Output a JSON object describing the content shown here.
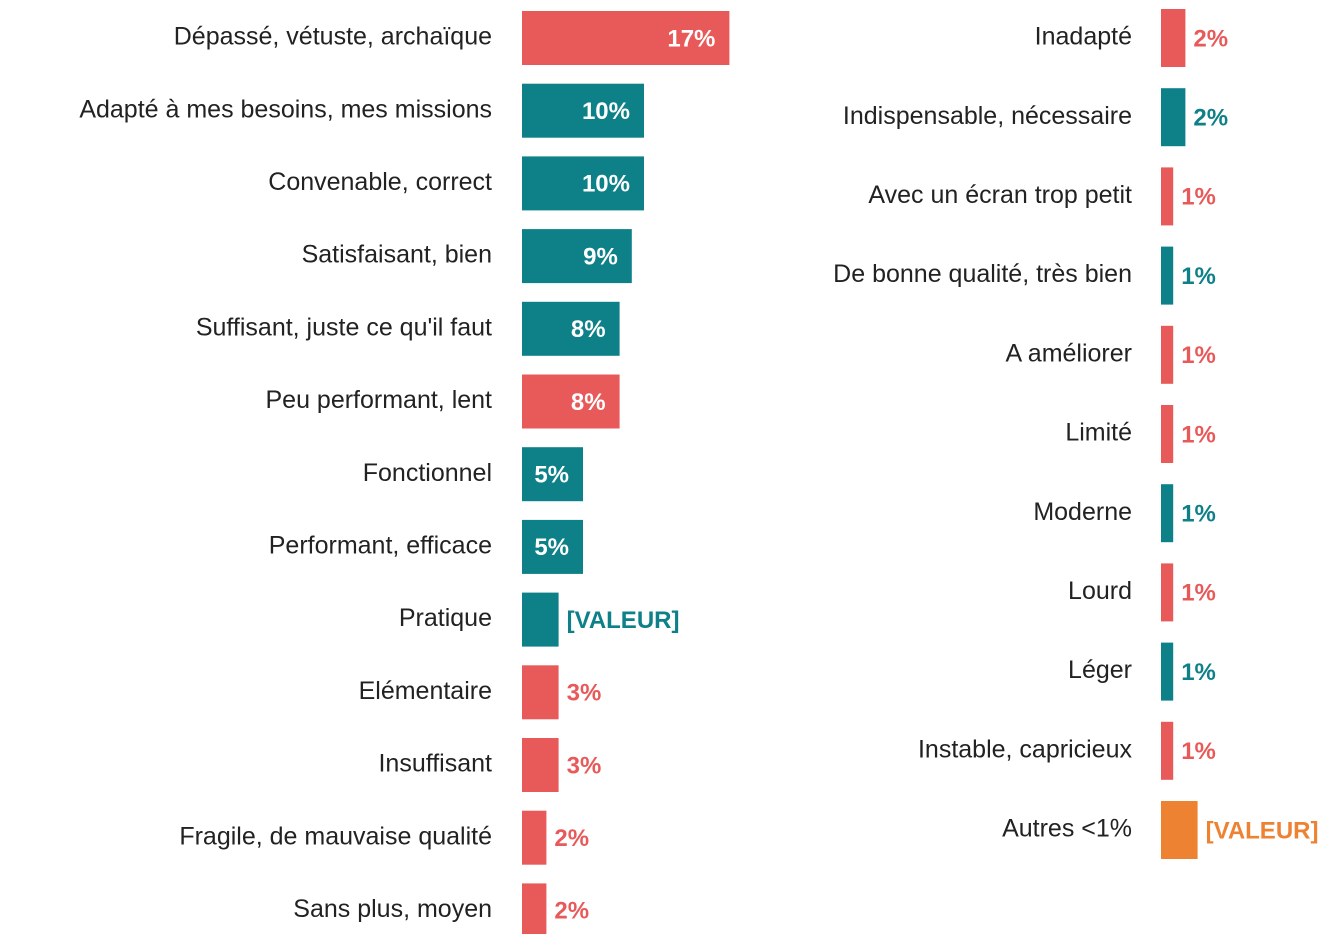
{
  "chart_data": [
    {
      "type": "bar",
      "orientation": "horizontal",
      "categories": [
        "Dépassé, vétuste, archaïque",
        "Adapté à mes besoins, mes missions",
        "Convenable, correct",
        "Satisfaisant, bien",
        "Suffisant, juste ce qu'il faut",
        "Peu performant, lent",
        "Fonctionnel",
        "Performant, efficace",
        "Pratique",
        "Elémentaire",
        "Insuffisant",
        "Fragile, de mauvaise qualité",
        "Sans plus, moyen"
      ],
      "values": [
        17,
        10,
        10,
        9,
        8,
        8,
        5,
        5,
        3,
        3,
        3,
        2,
        2
      ],
      "value_labels": [
        "17%",
        "10%",
        "10%",
        "9%",
        "8%",
        "8%",
        "5%",
        "5%",
        "[VALEUR]",
        "3%",
        "3%",
        "2%",
        "2%"
      ],
      "colors": [
        "#e85a5a",
        "#0e8088",
        "#0e8088",
        "#0e8088",
        "#0e8088",
        "#e85a5a",
        "#0e8088",
        "#0e8088",
        "#0e8088",
        "#e85a5a",
        "#e85a5a",
        "#e85a5a",
        "#e85a5a"
      ]
    },
    {
      "type": "bar",
      "orientation": "horizontal",
      "categories": [
        "Inadapté",
        "Indispensable, nécessaire",
        "Avec un écran trop petit",
        "De bonne qualité, très bien",
        "A améliorer",
        "Limité",
        "Moderne",
        "Lourd",
        "Léger",
        "Instable, capricieux",
        "Autres <1%"
      ],
      "values": [
        2,
        2,
        1,
        1,
        1,
        1,
        1,
        1,
        1,
        1,
        3
      ],
      "value_labels": [
        "2%",
        "2%",
        "1%",
        "1%",
        "1%",
        "1%",
        "1%",
        "1%",
        "1%",
        "1%",
        "[VALEUR]"
      ],
      "colors": [
        "#e85a5a",
        "#0e8088",
        "#e85a5a",
        "#0e8088",
        "#e85a5a",
        "#e85a5a",
        "#0e8088",
        "#e85a5a",
        "#0e8088",
        "#e85a5a",
        "#ee8233"
      ]
    }
  ]
}
